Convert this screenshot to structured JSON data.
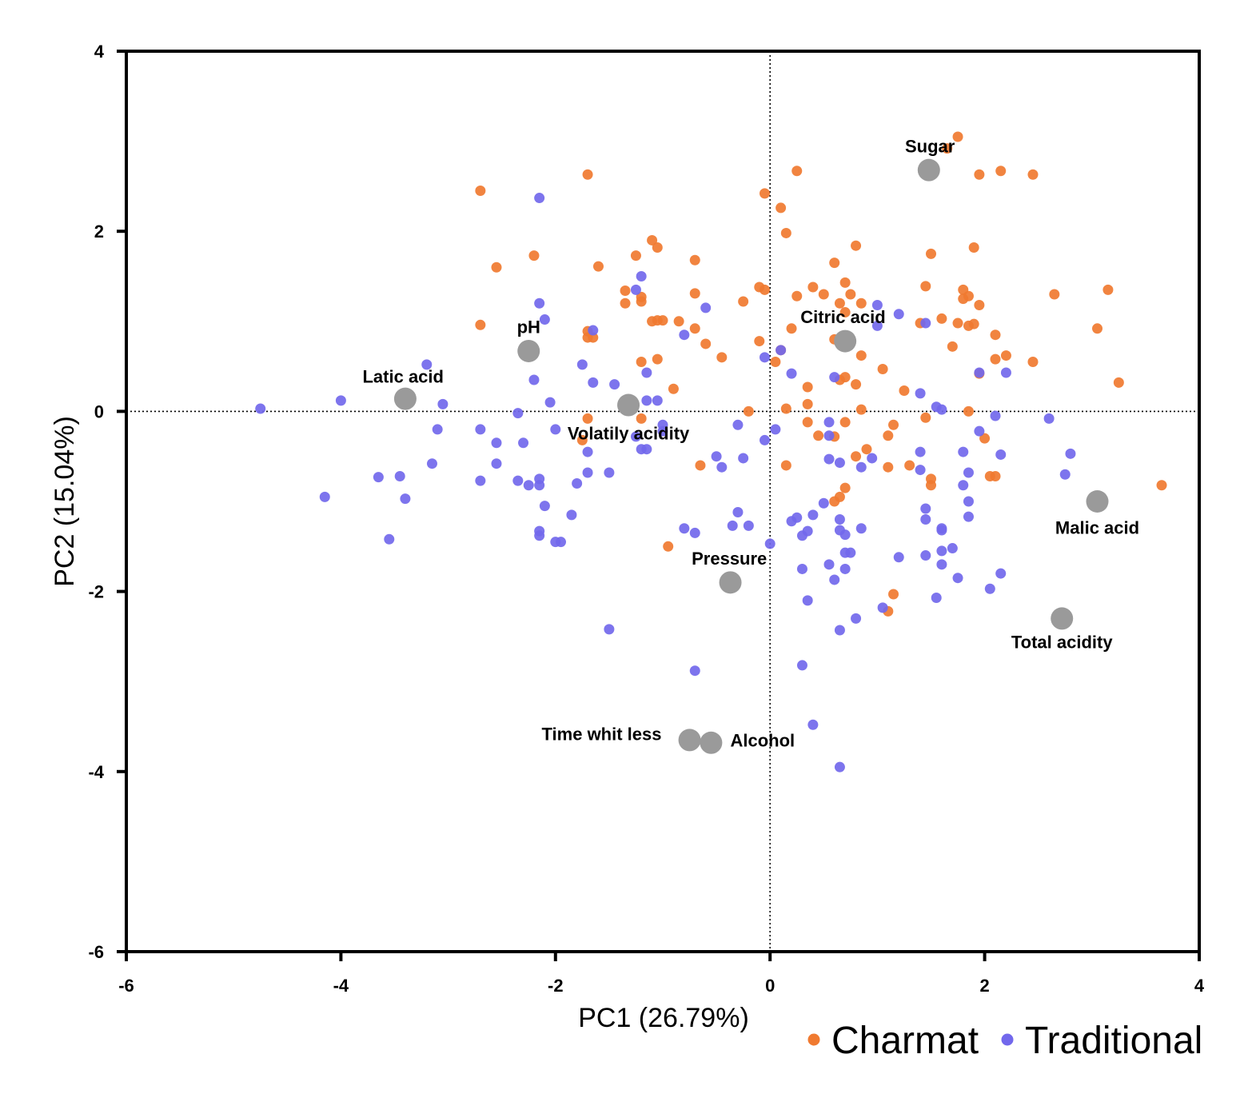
{
  "chart_data": {
    "type": "scatter",
    "xlabel": "PC1 (26.79%)",
    "ylabel": "PC2 (15.04%)",
    "xlim": [
      -6,
      4
    ],
    "ylim": [
      -6,
      4
    ],
    "x_ticks": [
      -6,
      -4,
      -2,
      0,
      2,
      4
    ],
    "y_ticks": [
      -6,
      -4,
      -2,
      0,
      2,
      4
    ],
    "x_tick_labels": [
      "-6",
      "-4",
      "-2",
      "0",
      "2",
      "4"
    ],
    "y_tick_labels": [
      "-6",
      "-4",
      "-2",
      "0",
      "2",
      "4"
    ],
    "grid": false,
    "reference_lines": {
      "x": 0,
      "y": 0,
      "style": "dotted"
    },
    "legend_position": "bottom-right",
    "series": [
      {
        "name": "Charmat",
        "color": "#f07a30",
        "points": [
          [
            -2.7,
            2.45
          ],
          [
            -1.7,
            2.63
          ],
          [
            -2.55,
            1.6
          ],
          [
            -2.2,
            1.73
          ],
          [
            -1.6,
            1.61
          ],
          [
            -1.35,
            1.34
          ],
          [
            -1.25,
            1.73
          ],
          [
            -1.1,
            1.9
          ],
          [
            -1.05,
            1.82
          ],
          [
            -1.2,
            1.27
          ],
          [
            -1.2,
            1.22
          ],
          [
            -1.1,
            1.0
          ],
          [
            -1.05,
            1.01
          ],
          [
            -1.0,
            1.01
          ],
          [
            -0.7,
            1.68
          ],
          [
            -0.7,
            1.31
          ],
          [
            -0.85,
            1.0
          ],
          [
            -0.7,
            0.92
          ],
          [
            -0.6,
            0.75
          ],
          [
            -0.45,
            0.6
          ],
          [
            -1.7,
            0.89
          ],
          [
            -1.7,
            0.82
          ],
          [
            -2.7,
            0.96
          ],
          [
            -1.65,
            0.82
          ],
          [
            -1.2,
            0.55
          ],
          [
            -1.05,
            0.58
          ],
          [
            -1.35,
            1.2
          ],
          [
            -0.9,
            0.25
          ],
          [
            -1.7,
            -0.08
          ],
          [
            -1.75,
            -0.32
          ],
          [
            -1.2,
            -0.08
          ],
          [
            -0.65,
            -0.6
          ],
          [
            -0.95,
            -1.5
          ],
          [
            -0.25,
            1.22
          ],
          [
            -0.1,
            1.38
          ],
          [
            -0.05,
            1.35
          ],
          [
            -0.1,
            0.78
          ],
          [
            0.05,
            0.55
          ],
          [
            0.1,
            0.68
          ],
          [
            -0.2,
            0.0
          ],
          [
            -0.05,
            2.42
          ],
          [
            0.1,
            2.26
          ],
          [
            0.15,
            1.98
          ],
          [
            0.25,
            2.67
          ],
          [
            0.2,
            0.92
          ],
          [
            0.25,
            1.28
          ],
          [
            0.4,
            1.38
          ],
          [
            0.5,
            1.3
          ],
          [
            0.6,
            1.65
          ],
          [
            0.7,
            1.43
          ],
          [
            0.75,
            1.3
          ],
          [
            0.6,
            0.8
          ],
          [
            0.7,
            0.75
          ],
          [
            0.65,
            1.2
          ],
          [
            0.7,
            1.1
          ],
          [
            0.85,
            1.2
          ],
          [
            0.8,
            1.84
          ],
          [
            0.85,
            0.62
          ],
          [
            0.65,
            0.35
          ],
          [
            0.7,
            0.38
          ],
          [
            0.8,
            0.3
          ],
          [
            1.05,
            0.47
          ],
          [
            0.35,
            0.27
          ],
          [
            0.35,
            0.08
          ],
          [
            0.15,
            0.03
          ],
          [
            0.35,
            -0.12
          ],
          [
            0.45,
            -0.27
          ],
          [
            0.6,
            -0.28
          ],
          [
            0.7,
            -0.12
          ],
          [
            0.85,
            0.02
          ],
          [
            0.15,
            -0.6
          ],
          [
            0.8,
            -0.5
          ],
          [
            0.9,
            -0.42
          ],
          [
            0.7,
            -0.85
          ],
          [
            0.65,
            -0.95
          ],
          [
            0.6,
            -1.0
          ],
          [
            1.1,
            -0.62
          ],
          [
            1.1,
            -0.27
          ],
          [
            1.15,
            -0.15
          ],
          [
            1.3,
            -0.6
          ],
          [
            1.25,
            0.23
          ],
          [
            1.4,
            0.98
          ],
          [
            1.45,
            1.39
          ],
          [
            1.5,
            1.75
          ],
          [
            1.6,
            1.03
          ],
          [
            1.7,
            0.72
          ],
          [
            1.75,
            0.98
          ],
          [
            1.8,
            1.35
          ],
          [
            1.8,
            1.25
          ],
          [
            1.85,
            1.28
          ],
          [
            1.85,
            0.95
          ],
          [
            1.9,
            0.97
          ],
          [
            1.95,
            1.18
          ],
          [
            1.95,
            0.42
          ],
          [
            1.9,
            1.82
          ],
          [
            2.1,
            0.85
          ],
          [
            2.1,
            0.58
          ],
          [
            2.2,
            0.62
          ],
          [
            2.05,
            -0.72
          ],
          [
            2.1,
            -0.72
          ],
          [
            2.0,
            -0.3
          ],
          [
            1.85,
            0.0
          ],
          [
            1.45,
            -0.07
          ],
          [
            1.5,
            -0.75
          ],
          [
            1.5,
            -0.82
          ],
          [
            1.15,
            -2.03
          ],
          [
            1.1,
            -2.22
          ],
          [
            1.65,
            2.92
          ],
          [
            1.75,
            3.05
          ],
          [
            1.95,
            2.63
          ],
          [
            2.15,
            2.67
          ],
          [
            2.45,
            2.63
          ],
          [
            2.45,
            0.55
          ],
          [
            2.65,
            1.3
          ],
          [
            3.05,
            0.92
          ],
          [
            3.15,
            1.35
          ],
          [
            3.25,
            0.32
          ],
          [
            3.65,
            -0.82
          ]
        ]
      },
      {
        "name": "Traditional",
        "color": "#7268ec",
        "points": [
          [
            -4.75,
            0.03
          ],
          [
            -4.0,
            0.12
          ],
          [
            -4.15,
            -0.95
          ],
          [
            -3.2,
            0.52
          ],
          [
            -3.05,
            0.08
          ],
          [
            -3.1,
            -0.2
          ],
          [
            -3.15,
            -0.58
          ],
          [
            -3.45,
            -0.72
          ],
          [
            -3.65,
            -0.73
          ],
          [
            -3.4,
            -0.97
          ],
          [
            -3.55,
            -1.42
          ],
          [
            -2.7,
            -0.2
          ],
          [
            -2.7,
            -0.77
          ],
          [
            -2.55,
            -0.35
          ],
          [
            -2.55,
            -0.58
          ],
          [
            -2.3,
            -0.35
          ],
          [
            -2.35,
            -0.02
          ],
          [
            -2.3,
            0.65
          ],
          [
            -2.25,
            0.62
          ],
          [
            -2.2,
            0.35
          ],
          [
            -2.15,
            1.2
          ],
          [
            -2.1,
            1.02
          ],
          [
            -2.15,
            2.37
          ],
          [
            -2.05,
            0.1
          ],
          [
            -2.0,
            -0.2
          ],
          [
            -2.15,
            -0.75
          ],
          [
            -2.25,
            -0.82
          ],
          [
            -2.15,
            -0.82
          ],
          [
            -2.35,
            -0.77
          ],
          [
            -2.15,
            -1.33
          ],
          [
            -2.15,
            -1.38
          ],
          [
            -2.1,
            -1.05
          ],
          [
            -1.95,
            -1.45
          ],
          [
            -2.0,
            -1.45
          ],
          [
            -1.85,
            -1.15
          ],
          [
            -1.8,
            -0.8
          ],
          [
            -1.7,
            -0.68
          ],
          [
            -1.7,
            -0.45
          ],
          [
            -1.75,
            0.52
          ],
          [
            -1.65,
            0.32
          ],
          [
            -1.65,
            0.9
          ],
          [
            -1.5,
            -0.68
          ],
          [
            -1.45,
            0.3
          ],
          [
            -1.25,
            -0.28
          ],
          [
            -1.2,
            -0.42
          ],
          [
            -1.15,
            -0.42
          ],
          [
            -1.15,
            0.43
          ],
          [
            -1.15,
            0.12
          ],
          [
            -1.05,
            0.12
          ],
          [
            -1.0,
            -0.15
          ],
          [
            -1.0,
            -0.22
          ],
          [
            -1.25,
            1.35
          ],
          [
            -1.2,
            1.5
          ],
          [
            -0.8,
            0.85
          ],
          [
            -0.6,
            1.15
          ],
          [
            -1.5,
            -2.42
          ],
          [
            -0.8,
            -1.3
          ],
          [
            -0.7,
            -1.35
          ],
          [
            -0.5,
            -0.5
          ],
          [
            -0.45,
            -0.62
          ],
          [
            -0.3,
            -1.12
          ],
          [
            -0.35,
            -1.27
          ],
          [
            -0.2,
            -1.27
          ],
          [
            -0.25,
            -0.52
          ],
          [
            -0.3,
            -0.15
          ],
          [
            -0.05,
            -0.32
          ],
          [
            -0.05,
            0.6
          ],
          [
            0.0,
            -1.47
          ],
          [
            0.1,
            0.68
          ],
          [
            0.05,
            -0.2
          ],
          [
            -0.7,
            -2.88
          ],
          [
            0.2,
            0.42
          ],
          [
            0.2,
            -1.22
          ],
          [
            0.25,
            -1.18
          ],
          [
            0.3,
            -1.38
          ],
          [
            0.35,
            -1.33
          ],
          [
            0.4,
            -1.15
          ],
          [
            0.3,
            -1.75
          ],
          [
            0.35,
            -2.1
          ],
          [
            0.3,
            -2.82
          ],
          [
            0.4,
            -3.48
          ],
          [
            0.5,
            -1.02
          ],
          [
            0.55,
            -0.12
          ],
          [
            0.55,
            -0.27
          ],
          [
            0.55,
            -0.53
          ],
          [
            0.55,
            -1.7
          ],
          [
            0.6,
            0.38
          ],
          [
            0.65,
            -0.57
          ],
          [
            0.65,
            -1.2
          ],
          [
            0.65,
            -1.32
          ],
          [
            0.7,
            -1.37
          ],
          [
            0.7,
            -1.57
          ],
          [
            0.75,
            -1.57
          ],
          [
            0.6,
            -1.87
          ],
          [
            0.7,
            -1.75
          ],
          [
            0.8,
            -2.3
          ],
          [
            0.65,
            -2.43
          ],
          [
            0.85,
            -1.3
          ],
          [
            0.85,
            -0.62
          ],
          [
            0.95,
            -0.52
          ],
          [
            1.0,
            0.95
          ],
          [
            1.0,
            1.18
          ],
          [
            1.2,
            1.08
          ],
          [
            1.05,
            -2.18
          ],
          [
            1.2,
            -1.62
          ],
          [
            1.4,
            0.2
          ],
          [
            1.45,
            0.98
          ],
          [
            1.55,
            0.05
          ],
          [
            1.6,
            0.02
          ],
          [
            1.4,
            -0.45
          ],
          [
            1.4,
            -0.65
          ],
          [
            1.45,
            -1.2
          ],
          [
            1.45,
            -1.08
          ],
          [
            1.45,
            -1.6
          ],
          [
            1.55,
            -2.07
          ],
          [
            1.6,
            -1.55
          ],
          [
            1.6,
            -1.3
          ],
          [
            1.6,
            -1.32
          ],
          [
            1.6,
            -1.7
          ],
          [
            1.7,
            -1.52
          ],
          [
            1.75,
            -1.85
          ],
          [
            1.8,
            -0.82
          ],
          [
            1.85,
            -0.68
          ],
          [
            1.85,
            -1.0
          ],
          [
            1.85,
            -1.17
          ],
          [
            1.95,
            0.43
          ],
          [
            1.95,
            -0.22
          ],
          [
            2.05,
            -1.97
          ],
          [
            2.1,
            -0.05
          ],
          [
            2.15,
            -0.48
          ],
          [
            2.15,
            -1.8
          ],
          [
            2.2,
            0.43
          ],
          [
            2.6,
            -0.08
          ],
          [
            2.75,
            -0.7
          ],
          [
            2.8,
            -0.47
          ],
          [
            0.65,
            -3.95
          ],
          [
            1.8,
            -0.45
          ]
        ]
      }
    ],
    "variables": [
      {
        "name": "Sugar",
        "x": 1.48,
        "y": 2.68,
        "label_x": 1.49,
        "label_y": 2.93
      },
      {
        "name": "Citric acid",
        "x": 0.7,
        "y": 0.78,
        "label_x": 0.68,
        "label_y": 1.03
      },
      {
        "name": "pH",
        "x": -2.25,
        "y": 0.67,
        "label_x": -2.25,
        "label_y": 0.92
      },
      {
        "name": "Latic acid",
        "x": -3.4,
        "y": 0.14,
        "label_x": -3.42,
        "label_y": 0.37
      },
      {
        "name": "Volatily acidity",
        "x": -1.32,
        "y": 0.07,
        "label_x": -1.32,
        "label_y": -0.26
      },
      {
        "name": "Malic acid",
        "x": 3.05,
        "y": -1.0,
        "label_x": 3.05,
        "label_y": -1.31
      },
      {
        "name": "Pressure",
        "x": -0.37,
        "y": -1.9,
        "label_x": -0.38,
        "label_y": -1.65
      },
      {
        "name": "Total acidity",
        "x": 2.72,
        "y": -2.3,
        "label_x": 2.72,
        "label_y": -2.58
      },
      {
        "name": "Time whit less",
        "x": -0.75,
        "y": -3.65,
        "label_x": -1.57,
        "label_y": -3.6,
        "anchor": "middle"
      },
      {
        "name": "Alcohol",
        "x": -0.55,
        "y": -3.68,
        "label_x": -0.07,
        "label_y": -3.67,
        "anchor": "middle"
      }
    ],
    "variable_color": "#9a9a9a"
  }
}
